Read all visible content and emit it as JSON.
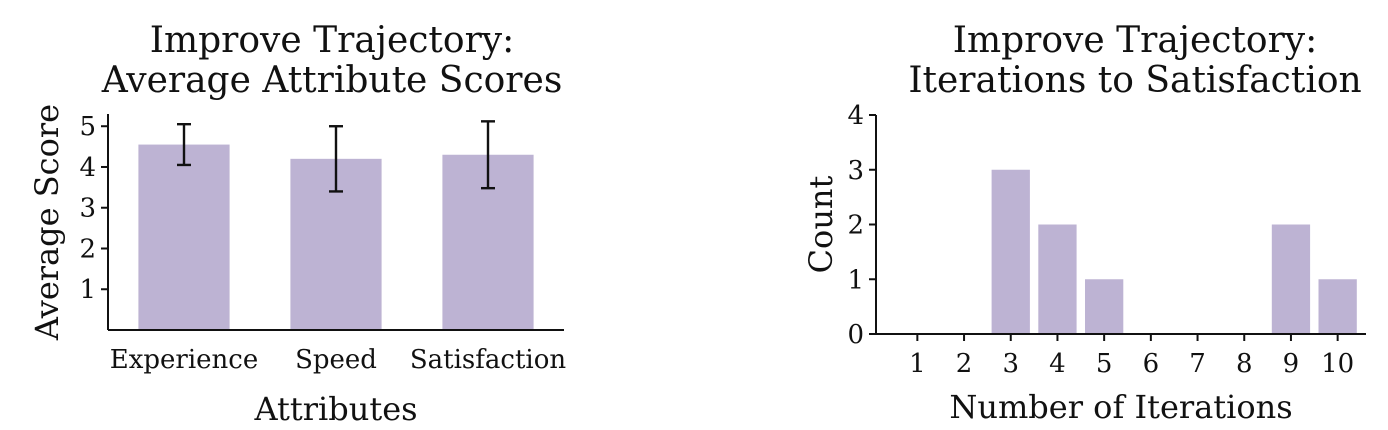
{
  "chart_data": [
    {
      "type": "bar",
      "title": [
        "Improve Trajectory:",
        "Average Attribute Scores"
      ],
      "xlabel": "Attributes",
      "ylabel": "Average Score",
      "categories": [
        "Experience",
        "Speed",
        "Satisfaction"
      ],
      "values": [
        4.55,
        4.2,
        4.3
      ],
      "errors": [
        0.5,
        0.8,
        0.82
      ],
      "ylim": [
        0,
        5.3
      ],
      "yticks": [
        1,
        2,
        3,
        4,
        5
      ],
      "bar_color": "#bdb3d3",
      "grid": false,
      "legend": "none"
    },
    {
      "type": "bar",
      "title": [
        "Improve Trajectory:",
        "Iterations to Satisfaction"
      ],
      "xlabel": "Number of Iterations",
      "ylabel": "Count",
      "categories": [
        "1",
        "2",
        "3",
        "4",
        "5",
        "6",
        "7",
        "8",
        "9",
        "10"
      ],
      "values": [
        0,
        0,
        3,
        2,
        1,
        0,
        0,
        0,
        2,
        1
      ],
      "ylim": [
        0,
        4
      ],
      "yticks": [
        0,
        1,
        2,
        3,
        4
      ],
      "bar_color": "#bdb3d3",
      "grid": false,
      "legend": "none"
    }
  ]
}
